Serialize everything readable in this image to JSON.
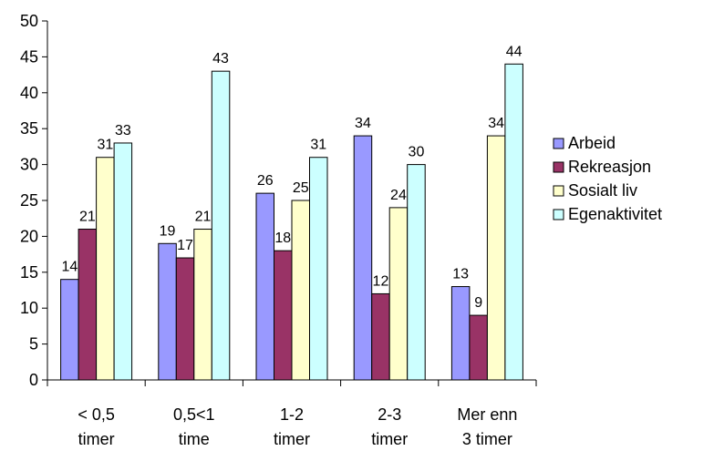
{
  "chart_data": {
    "type": "bar",
    "categories": [
      [
        "< 0,5",
        "timer"
      ],
      [
        "0,5<1",
        "time"
      ],
      [
        "1-2",
        "timer"
      ],
      [
        "2-3",
        "timer"
      ],
      [
        "Mer enn",
        "3 timer"
      ]
    ],
    "series": [
      {
        "name": "Arbeid",
        "color": "#9999ff",
        "values": [
          14,
          19,
          26,
          34,
          13
        ]
      },
      {
        "name": "Rekreasjon",
        "color": "#993366",
        "values": [
          21,
          17,
          18,
          12,
          9
        ]
      },
      {
        "name": "Sosialt liv",
        "color": "#ffffcc",
        "values": [
          31,
          21,
          25,
          24,
          34
        ]
      },
      {
        "name": "Egenaktivitet",
        "color": "#ccffff",
        "values": [
          33,
          43,
          31,
          30,
          44
        ]
      }
    ],
    "ylim": [
      0,
      50
    ],
    "yticks": [
      0,
      5,
      10,
      15,
      20,
      25,
      30,
      35,
      40,
      45,
      50
    ],
    "legend_position": "right",
    "grid": false,
    "title": "",
    "xlabel": "",
    "ylabel": ""
  }
}
